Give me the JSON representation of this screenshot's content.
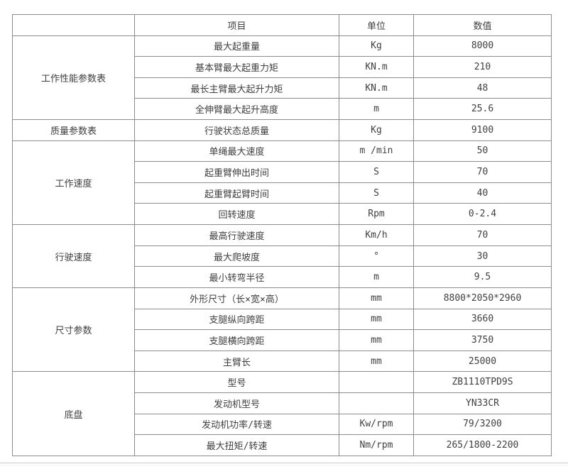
{
  "page": {
    "background_color": "#ffffff",
    "border_color": "#8c8c8c",
    "text_color": "#3f3f3f",
    "divider_color": "#cbcbcb"
  },
  "table": {
    "headers": [
      "",
      "项目",
      "单位",
      "数值"
    ],
    "groups": [
      {
        "category": "工作性能参数表",
        "rows": [
          {
            "item": "最大起重量",
            "unit": "Kg",
            "value": "8000"
          },
          {
            "item": "基本臂最大起重力矩",
            "unit": "KN.m",
            "value": "210"
          },
          {
            "item": "最长主臂最大起升力矩",
            "unit": "KN.m",
            "value": "48"
          },
          {
            "item": "全伸臂最大起升高度",
            "unit": "m",
            "value": "25.6"
          }
        ]
      },
      {
        "category": "质量参数表",
        "rows": [
          {
            "item": "行驶状态总质量",
            "unit": "Kg",
            "value": "9100"
          }
        ]
      },
      {
        "category": "工作速度",
        "rows": [
          {
            "item": "单绳最大速度",
            "unit": "m /min",
            "value": "50"
          },
          {
            "item": "起重臂伸出时间",
            "unit": "S",
            "value": "70"
          },
          {
            "item": "起重臂起臂时间",
            "unit": "S",
            "value": "40"
          },
          {
            "item": "回转速度",
            "unit": "Rpm",
            "value": "0-2.4"
          }
        ]
      },
      {
        "category": "行驶速度",
        "rows": [
          {
            "item": "最高行驶速度",
            "unit": "Km/h",
            "value": "70"
          },
          {
            "item": "最大爬坡度",
            "unit": "°",
            "value": "30"
          },
          {
            "item": "最小转弯半径",
            "unit": "m",
            "value": "9.5"
          }
        ]
      },
      {
        "category": "尺寸参数",
        "rows": [
          {
            "item": "外形尺寸（长×宽×高）",
            "unit": "mm",
            "value": "8800*2050*2960"
          },
          {
            "item": "支腿纵向跨距",
            "unit": "mm",
            "value": "3660"
          },
          {
            "item": "支腿横向跨距",
            "unit": "mm",
            "value": "3750"
          },
          {
            "item": "主臂长",
            "unit": "mm",
            "value": "25000"
          }
        ]
      },
      {
        "category": "底盘",
        "rows": [
          {
            "item": "型号",
            "unit": "",
            "value": "ZB1110TPD9S"
          },
          {
            "item": "发动机型号",
            "unit": "",
            "value": "YN33CR"
          },
          {
            "item": "发动机功率/转速",
            "unit": "Kw/rpm",
            "value": "79/3200"
          },
          {
            "item": "最大扭矩/转速",
            "unit": "Nm/rpm",
            "value": "265/1800-2200"
          }
        ]
      }
    ]
  }
}
